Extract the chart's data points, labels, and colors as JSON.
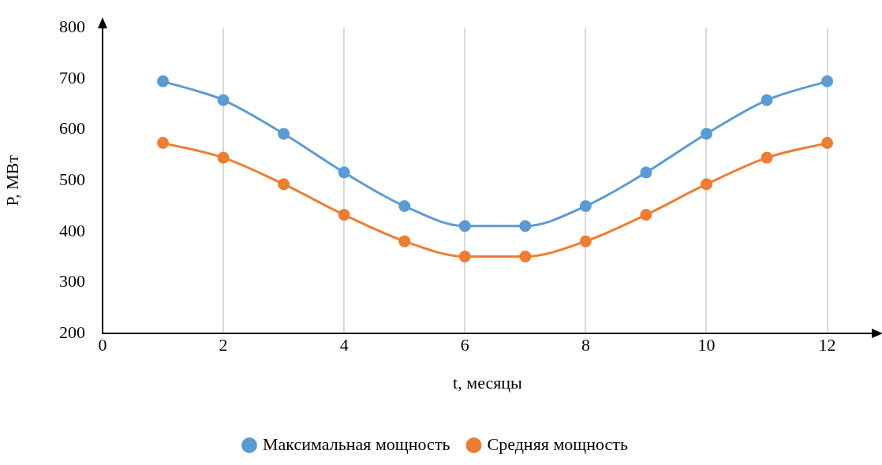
{
  "chart_data": {
    "type": "line",
    "xlabel": "t, месяцы",
    "ylabel": "P, МВт",
    "x": [
      1,
      2,
      3,
      4,
      5,
      6,
      7,
      8,
      9,
      10,
      11,
      12
    ],
    "series": [
      {
        "name": "Максимальная мощность",
        "color": "#5b9bd5",
        "values": [
          695,
          658,
          592,
          516,
          450,
          411,
          411,
          450,
          516,
          592,
          658,
          695
        ]
      },
      {
        "name": "Средняя мощность",
        "color": "#ed7d31",
        "values": [
          574,
          545,
          493,
          433,
          381,
          351,
          351,
          381,
          433,
          493,
          545,
          574
        ]
      }
    ],
    "xlim": [
      0,
      12.75
    ],
    "xticks": [
      0,
      2,
      4,
      6,
      8,
      10,
      12
    ],
    "ylim": [
      200,
      800
    ],
    "yticks": [
      200,
      300,
      400,
      500,
      600,
      700,
      800
    ],
    "grid": "x",
    "legend": "bottom",
    "marker": "circle",
    "line_style": "solid"
  }
}
